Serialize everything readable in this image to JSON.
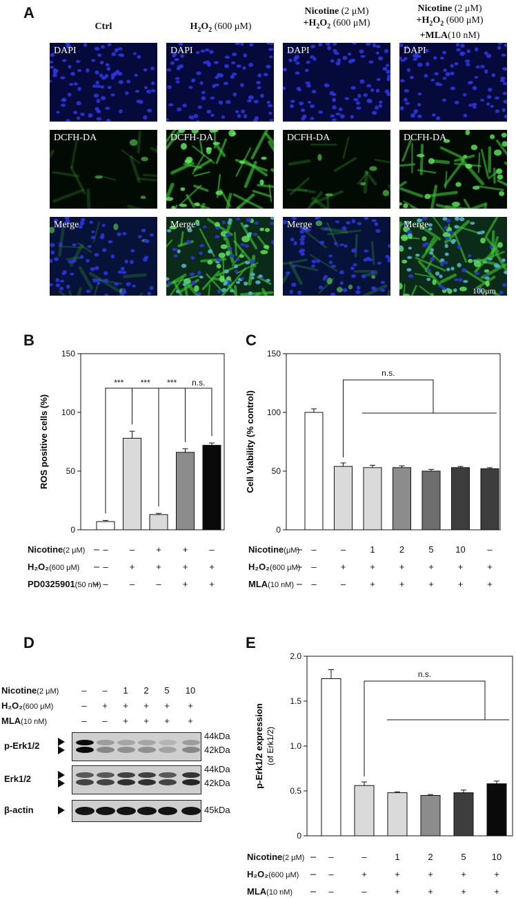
{
  "panel_labels": {
    "a": "A",
    "b": "B",
    "c": "C",
    "d": "D",
    "e": "E"
  },
  "panel_a": {
    "columns": [
      {
        "lines": [
          [
            {
              "t": "Ctrl",
              "b": true
            }
          ]
        ]
      },
      {
        "lines": [
          [
            {
              "t": "H",
              "b": true
            },
            {
              "t": "2",
              "b": true,
              "sub": true
            },
            {
              "t": "O",
              "b": true
            },
            {
              "t": "2",
              "b": true,
              "sub": true
            },
            {
              "t": " (600 μM)",
              "b": false
            }
          ]
        ]
      },
      {
        "lines": [
          [
            {
              "t": "Nicotine",
              "b": true
            },
            {
              "t": " (2 μM)",
              "b": false
            }
          ],
          [
            {
              "t": "+H",
              "b": true
            },
            {
              "t": "2",
              "b": true,
              "sub": true
            },
            {
              "t": "O",
              "b": true
            },
            {
              "t": "2",
              "b": true,
              "sub": true
            },
            {
              "t": " (600 μM)",
              "b": false
            }
          ]
        ]
      },
      {
        "lines": [
          [
            {
              "t": "Nicotine",
              "b": true
            },
            {
              "t": " (2 μM)",
              "b": false
            }
          ],
          [
            {
              "t": "+H",
              "b": true
            },
            {
              "t": "2",
              "b": true,
              "sub": true
            },
            {
              "t": "O",
              "b": true
            },
            {
              "t": "2",
              "b": true,
              "sub": true
            },
            {
              "t": " (600 μM)",
              "b": false
            }
          ],
          [
            {
              "t": "+MLA",
              "b": true
            },
            {
              "t": "(10 nM)",
              "b": false
            }
          ]
        ]
      }
    ],
    "rows": [
      "DAPI",
      "DCFH-DA",
      "Merge"
    ],
    "green_intensity": [
      0.15,
      0.85,
      0.2,
      0.8
    ],
    "scale_bar": "100μm"
  },
  "colors": {
    "bar_stroke": "#000000",
    "dapi_blue": "#1a22c8",
    "dcf_green": "#35c22f"
  },
  "chart_data": [
    {
      "id": "B",
      "type": "bar",
      "categories": [
        "1",
        "2",
        "3",
        "4",
        "5"
      ],
      "values": [
        7,
        78,
        13,
        66,
        72
      ],
      "errors": [
        1,
        6,
        1,
        3,
        2
      ],
      "colors": [
        "#ffffff",
        "#dadada",
        "#dadada",
        "#8c8c8c",
        "#0a0a0a"
      ],
      "ylabel": "ROS positive cells (%)",
      "ylim": [
        0,
        150
      ],
      "yticks": [
        0,
        50,
        100,
        150
      ],
      "significance": [
        {
          "from": 0,
          "to": 1,
          "label": "***"
        },
        {
          "from": 1,
          "to": 2,
          "label": "***"
        },
        {
          "from": 2,
          "to": 3,
          "label": "***"
        },
        {
          "from": 3,
          "to": 4,
          "label": "n.s."
        }
      ],
      "conditions": [
        {
          "label": "Nicotine",
          "unit": "(2 μM)",
          "values": [
            "–",
            "–",
            "+",
            "+",
            "–"
          ]
        },
        {
          "label": "H₂O₂",
          "unit": "(600 μM)",
          "values": [
            "–",
            "+",
            "+",
            "+",
            "+"
          ]
        },
        {
          "label": "PD0325901",
          "unit": "(50 nM)",
          "values": [
            "–",
            "–",
            "–",
            "+",
            "+"
          ]
        }
      ]
    },
    {
      "id": "C",
      "type": "bar",
      "categories": [
        "1",
        "2",
        "3",
        "4",
        "5",
        "6",
        "7"
      ],
      "values": [
        100,
        54,
        53,
        53,
        50,
        53,
        52
      ],
      "errors": [
        3,
        3,
        2,
        1.5,
        1.5,
        1,
        1
      ],
      "colors": [
        "#ffffff",
        "#dadada",
        "#dadada",
        "#8c8c8c",
        "#6e6e6e",
        "#3d3d3d",
        "#3d3d3d"
      ],
      "ylabel": "Cell Viability (% control)",
      "ylim": [
        0,
        150
      ],
      "yticks": [
        0,
        50,
        100,
        150
      ],
      "ns_label": "n.s.",
      "conditions": [
        {
          "label": "Nicotine",
          "unit": "(μM)",
          "values": [
            "–",
            "–",
            "1",
            "2",
            "5",
            "10",
            "–"
          ]
        },
        {
          "label": "H₂O₂",
          "unit": "(600 μM)",
          "values": [
            "–",
            "+",
            "+",
            "+",
            "+",
            "+",
            "+"
          ]
        },
        {
          "label": "MLA",
          "unit": "(10 nM)",
          "values": [
            "–",
            "–",
            "+",
            "+",
            "+",
            "+",
            "+"
          ]
        }
      ]
    },
    {
      "id": "E",
      "type": "bar",
      "categories": [
        "1",
        "2",
        "3",
        "4",
        "5",
        "6"
      ],
      "values": [
        1.75,
        0.56,
        0.48,
        0.45,
        0.48,
        0.58
      ],
      "errors": [
        0.1,
        0.04,
        0.01,
        0.01,
        0.03,
        0.03
      ],
      "colors": [
        "#ffffff",
        "#dadada",
        "#dadada",
        "#8c8c8c",
        "#3d3d3d",
        "#0a0a0a"
      ],
      "ylabel_lines": [
        "p-Erk1/2 expression",
        "(of Erk1/2)"
      ],
      "ylim": [
        0,
        2.0
      ],
      "yticks": [
        "0",
        "0.5",
        "1.0",
        "1.5",
        "2.0"
      ],
      "ns_label": "n.s.",
      "conditions": [
        {
          "label": "Nicotine",
          "unit": "(2 μM)",
          "values": [
            "–",
            "–",
            "1",
            "2",
            "5",
            "10"
          ]
        },
        {
          "label": "H₂O₂",
          "unit": "(600 μM)",
          "values": [
            "–",
            "+",
            "+",
            "+",
            "+",
            "+"
          ]
        },
        {
          "label": "MLA",
          "unit": "(10 nM)",
          "values": [
            "–",
            "–",
            "+",
            "+",
            "+",
            "+"
          ]
        }
      ]
    }
  ],
  "panel_d": {
    "conditions": [
      {
        "label": "Nicotine",
        "unit": "(2 μM)",
        "values": [
          "–",
          "–",
          "1",
          "2",
          "5",
          "10"
        ]
      },
      {
        "label": "H₂O₂",
        "unit": "(600 μM)",
        "values": [
          "–",
          "+",
          "+",
          "+",
          "+",
          "+"
        ]
      },
      {
        "label": "MLA",
        "unit": "(10 nM)",
        "values": [
          "–",
          "–",
          "+",
          "+",
          "+",
          "+"
        ]
      }
    ],
    "blots": [
      {
        "label": "p-Erk1/2",
        "sizes": [
          "44kDa",
          "42kDa"
        ],
        "band_intensity": [
          1.0,
          0.35,
          0.3,
          0.3,
          0.2,
          0.35
        ]
      },
      {
        "label": "Erk1/2",
        "sizes": [
          "44kDa",
          "42kDa"
        ],
        "band_intensity": [
          0.7,
          0.7,
          0.8,
          0.8,
          0.7,
          0.85
        ]
      },
      {
        "label": "β-actin",
        "sizes": [
          "45kDa"
        ],
        "band_intensity": [
          0.95,
          0.95,
          0.95,
          0.95,
          0.95,
          0.95
        ]
      }
    ]
  }
}
